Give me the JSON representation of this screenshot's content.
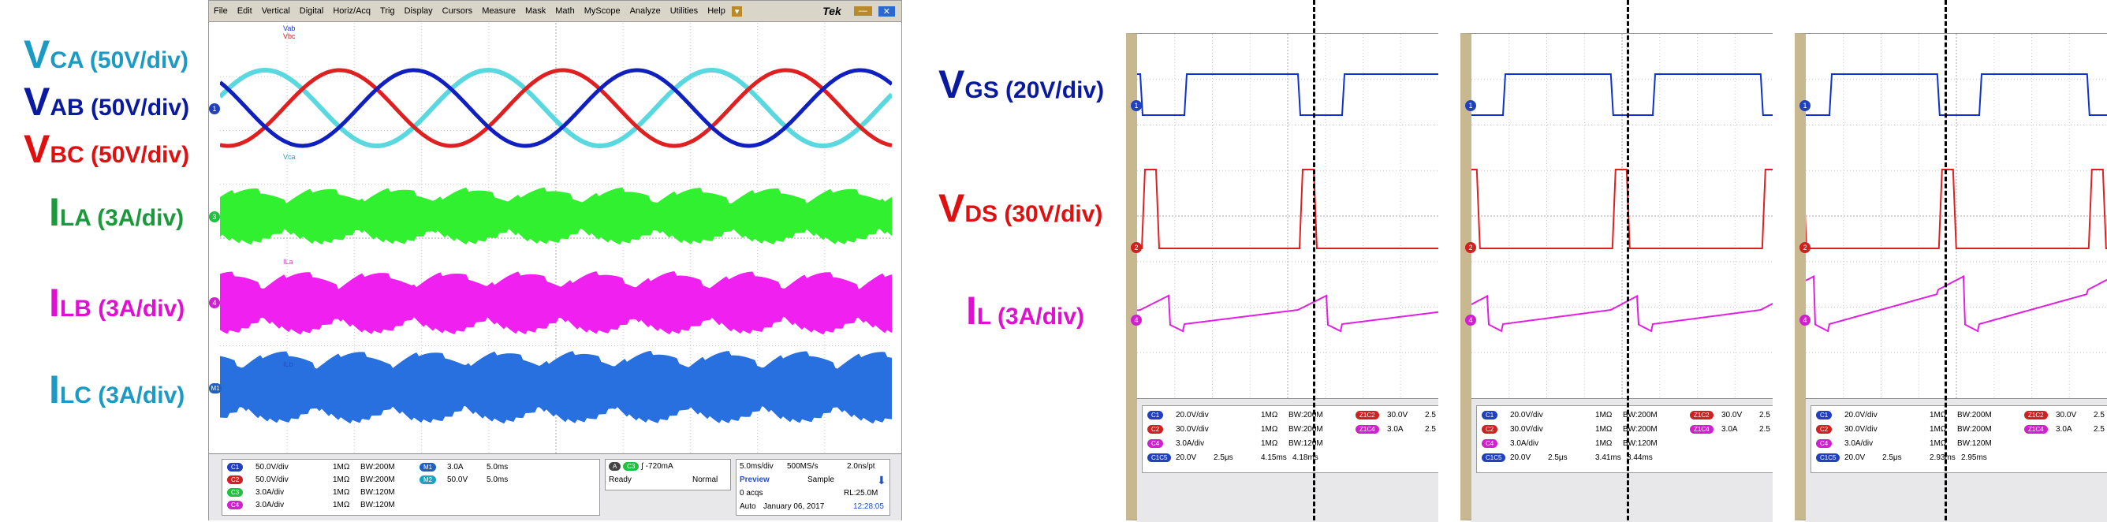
{
  "left_labels": [
    {
      "sym": "V",
      "sub": "CA (50V/div)",
      "color": "#1b9ac4"
    },
    {
      "sym": "V",
      "sub": "AB (50V/div)",
      "color": "#0a1aa0"
    },
    {
      "sym": "V",
      "sub": "BC (50V/div)",
      "color": "#e01010"
    },
    {
      "sym": "I",
      "sub": "LA (3A/div)",
      "color": "#1a9a3a"
    },
    {
      "sym": "I",
      "sub": "LB (3A/div)",
      "color": "#e010d0"
    },
    {
      "sym": "I",
      "sub": "LC (3A/div)",
      "color": "#1a9ac4"
    }
  ],
  "right_labels": [
    {
      "sym": "V",
      "sub": "GS (20V/div)",
      "color": "#0a1aa0"
    },
    {
      "sym": "V",
      "sub": "DS (30V/div)",
      "color": "#e01010"
    },
    {
      "sym": "I",
      "sub": "L (3A/div)",
      "color": "#e010d0"
    }
  ],
  "menu": [
    "File",
    "Edit",
    "Vertical",
    "Digital",
    "Horiz/Acq",
    "Trig",
    "Display",
    "Cursors",
    "Measure",
    "Mask",
    "Math",
    "MyScope",
    "Analyze",
    "Utilities",
    "Help"
  ],
  "menu_brand": "Tek",
  "markers": {
    "one": "1",
    "two": "2",
    "three": "3",
    "four": "4",
    "m1": "M1"
  },
  "trace_tags": [
    "Vab",
    "Vbc",
    "Vca",
    "ILa",
    "ILb",
    "ILc"
  ],
  "scope1": {
    "channels": [
      {
        "chip": "C1",
        "scale": "50.0V/div",
        "imp": "1MΩ",
        "bw": "BW:200M",
        "color": "#2040c0"
      },
      {
        "chip": "C2",
        "scale": "50.0V/div",
        "imp": "1MΩ",
        "bw": "BW:200M",
        "color": "#d02020"
      },
      {
        "chip": "C3",
        "scale": "3.0A/div",
        "imp": "1MΩ",
        "bw": "BW:120M",
        "color": "#20c040"
      },
      {
        "chip": "C4",
        "scale": "3.0A/div",
        "imp": "1MΩ",
        "bw": "BW:120M",
        "color": "#d020d0"
      }
    ],
    "math": [
      {
        "chip": "M1",
        "v": "3.0A",
        "t": "5.0ms",
        "color": "#2060c0"
      },
      {
        "chip": "M2",
        "v": "50.0V",
        "t": "5.0ms",
        "color": "#20a0c0"
      }
    ],
    "trigger": {
      "chip": "A",
      "ch": "C3",
      "level": "-720mA",
      "state": "Ready",
      "mode": "Normal"
    },
    "acq": {
      "tdiv": "5.0ms/div",
      "rate": "500MS/s",
      "pt": "2.0ns/pt",
      "mode": "Preview",
      "sample": "Sample",
      "acqs": "0 acqs",
      "rl": "RL:25.0M",
      "auto": "Auto",
      "date": "January 06, 2017",
      "time": "12:28:05"
    }
  },
  "small_scopes": [
    {
      "cursor": "C1C5",
      "v": "20.0V",
      "t": "2.5μs",
      "a": "4.15ms",
      "b": "4.18ms"
    },
    {
      "cursor": "C1C5",
      "v": "20.0V",
      "t": "2.5μs",
      "a": "3.41ms",
      "b": "3.44ms"
    },
    {
      "cursor": "C1C5",
      "v": "20.0V",
      "t": "2.5μs",
      "a": "2.93ms",
      "b": "2.95ms"
    }
  ],
  "small_channels": [
    {
      "chip": "C1",
      "scale": "20.0V/div",
      "imp": "1MΩ",
      "bw": "BW:200M",
      "color": "#2040c0"
    },
    {
      "chip": "C2",
      "scale": "30.0V/div",
      "imp": "1MΩ",
      "bw": "BW:200M",
      "color": "#d02020"
    },
    {
      "chip": "C4",
      "scale": "3.0A/div",
      "imp": "1MΩ",
      "bw": "BW:120M",
      "color": "#d020d0"
    }
  ],
  "small_math": [
    {
      "chip": "Z1C2",
      "v": "30.0V",
      "t": "2.5",
      "color": "#d02020"
    },
    {
      "chip": "Z1C4",
      "v": "3.0A",
      "t": "2.5",
      "color": "#d020d0"
    }
  ]
}
